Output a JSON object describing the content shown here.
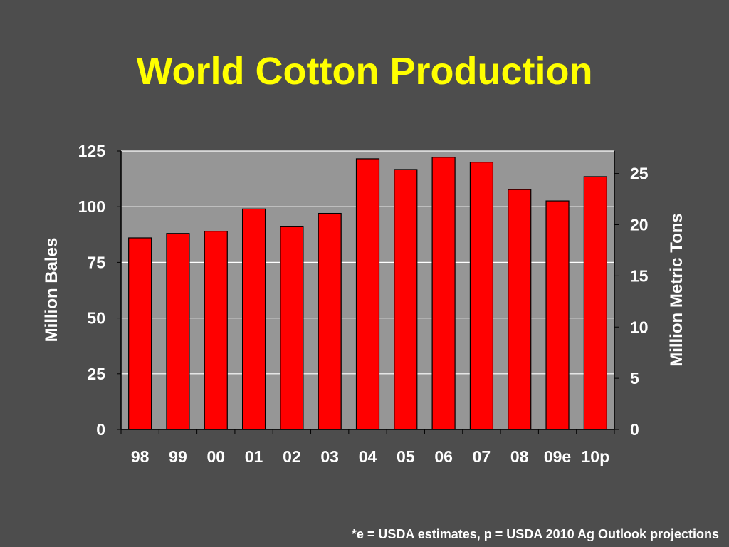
{
  "chart_data": {
    "type": "bar",
    "title": "World Cotton Production",
    "categories": [
      "98",
      "99",
      "00",
      "01",
      "02",
      "03",
      "04",
      "05",
      "06",
      "07",
      "08",
      "09e",
      "10p"
    ],
    "series": [
      {
        "values": [
          86,
          88,
          89,
          99,
          91,
          97,
          121.5,
          116.7,
          122.2,
          120,
          107.7,
          102.6,
          113.5
        ]
      }
    ],
    "ylabel": "Million Bales",
    "ylim": [
      0,
      125
    ],
    "yticks": [
      "0",
      "25",
      "50",
      "75",
      "100",
      "125"
    ],
    "y2label": "Million Metric Tons",
    "y2lim": [
      0,
      27.2
    ],
    "y2ticks": [
      "0",
      "5",
      "10",
      "15",
      "20",
      "25"
    ],
    "grid": true,
    "bar_color": "#ff0000",
    "plot_background": "#969696",
    "footnote": "*e = USDA estimates, p = USDA 2010 Ag Outlook projections"
  }
}
